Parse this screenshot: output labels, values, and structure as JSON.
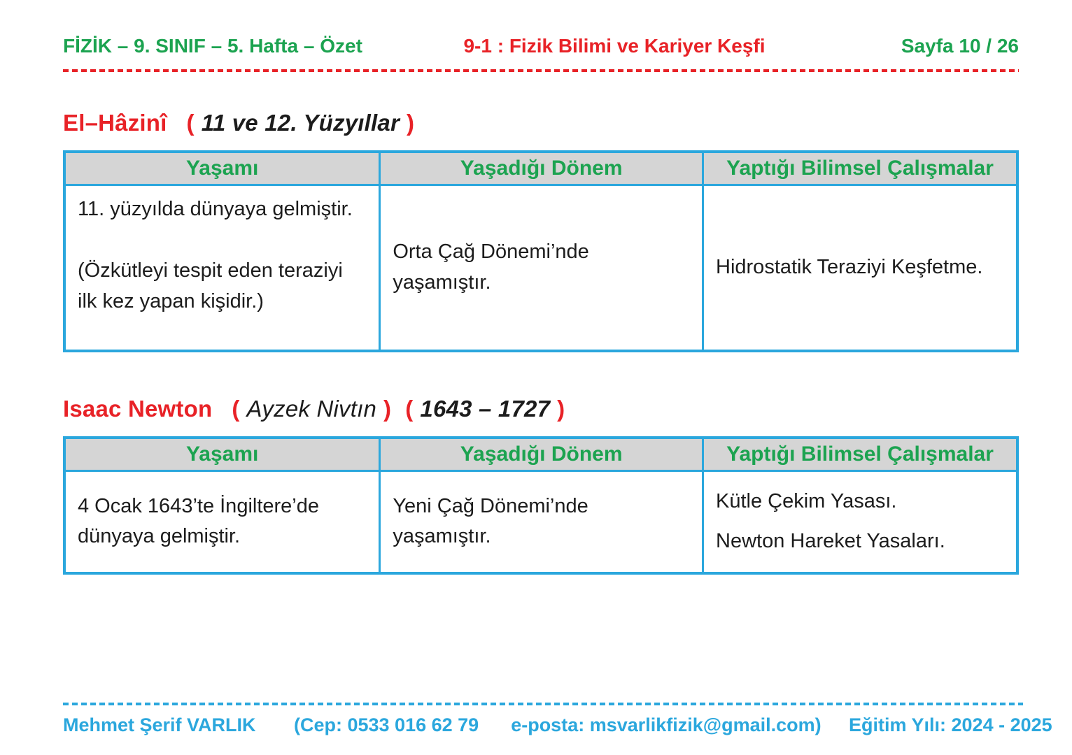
{
  "header": {
    "left": "FİZİK – 9. SINIF –  5. Hafta – Özet",
    "center": "9-1 : Fizik Bilimi ve Kariyer Keşfi",
    "right": "Sayfa 10 / 26"
  },
  "punct": {
    "open": "(",
    "close": ")"
  },
  "sections": {
    "hazini": {
      "name": "El–Hâzinî",
      "period": "11 ve 12. Yüzyıllar",
      "table": {
        "headers": [
          "Yaşamı",
          "Yaşadığı Dönem",
          "Yaptığı Bilimsel Çalışmalar"
        ],
        "row": {
          "life_p1": "11. yüzyılda dünyaya gelmiştir.",
          "life_p2": "(Özkütleyi tespit eden teraziyi ilk kez yapan kişidir.)",
          "era": "Orta Çağ Dönemi’nde yaşamıştır.",
          "works": "Hidrostatik Teraziyi Keşfetme."
        }
      }
    },
    "newton": {
      "name": "Isaac Newton",
      "pronunciation": "Ayzek Nivtın",
      "years": "1643 – 1727",
      "table": {
        "headers": [
          "Yaşamı",
          "Yaşadığı Dönem",
          "Yaptığı Bilimsel Çalışmalar"
        ],
        "row": {
          "life": "4 Ocak 1643’te İngiltere’de dünyaya gelmiştir.",
          "era": "Yeni Çağ Dönemi’nde yaşamıştır.",
          "works_p1": "Kütle Çekim Yasası.",
          "works_p2": "Newton Hareket Yasaları."
        }
      }
    }
  },
  "footer": {
    "author": "Mehmet Şerif VARLIK",
    "phone": "(Cep: 0533 016 62 79",
    "email": "e-posta: msvarlikfizik@gmail.com)",
    "year": "Eğitim Yılı: 2024 - 2025"
  },
  "colors": {
    "green": "#1ca350",
    "red": "#e82227",
    "cyan": "#2ba7dd",
    "table_border": "#2ba7dd",
    "table_header_fill": "#d5d5d5",
    "body_text": "#1c1c1c"
  }
}
